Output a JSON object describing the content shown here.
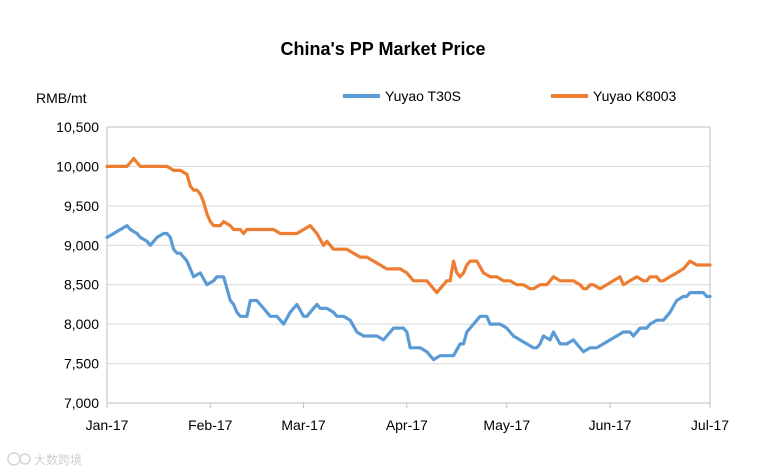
{
  "chart_data": {
    "type": "line",
    "title": "China's PP Market Price",
    "ylabel": "RMB/mt",
    "xlabel": "",
    "ylim": [
      7000,
      10500
    ],
    "xlim": [
      0,
      181
    ],
    "y_ticks": [
      7000,
      7500,
      8000,
      8500,
      9000,
      9500,
      10000,
      10500
    ],
    "y_tick_labels": [
      "7,000",
      "7,500",
      "8,000",
      "8,500",
      "9,000",
      "9,500",
      "10,000",
      "10,500"
    ],
    "x_ticks": [
      {
        "day": 0,
        "label": "Jan-17"
      },
      {
        "day": 31,
        "label": "Feb-17"
      },
      {
        "day": 59,
        "label": "Mar-17"
      },
      {
        "day": 90,
        "label": "Apr-17"
      },
      {
        "day": 120,
        "label": "May-17"
      },
      {
        "day": 151,
        "label": "Jun-17"
      },
      {
        "day": 181,
        "label": "Jul-17"
      }
    ],
    "grid": true,
    "legend_position": "top",
    "series": [
      {
        "name": "Yuyao T30S",
        "color": "#5B9BD5",
        "x": [
          0,
          2,
          4,
          6,
          7,
          9,
          10,
          12,
          13,
          15,
          17,
          18,
          19,
          20,
          21,
          22,
          24,
          26,
          28,
          30,
          32,
          33,
          35,
          37,
          38,
          39,
          40,
          42,
          43,
          45,
          46,
          47,
          49,
          51,
          53,
          55,
          57,
          59,
          60,
          61,
          63,
          64,
          66,
          68,
          69,
          70,
          71,
          73,
          75,
          77,
          79,
          81,
          83,
          84,
          86,
          88,
          89,
          90,
          91,
          93,
          94,
          96,
          98,
          100,
          102,
          104,
          106,
          107,
          108,
          109,
          110,
          111,
          112,
          114,
          115,
          117,
          118,
          120,
          122,
          124,
          126,
          128,
          129,
          130,
          131,
          133,
          134,
          136,
          138,
          140,
          141,
          143,
          145,
          147,
          149,
          151,
          153,
          155,
          157,
          158,
          160,
          161,
          162,
          163,
          165,
          167,
          168,
          169,
          171,
          173,
          174,
          175,
          177,
          179,
          180,
          181
        ],
        "values": [
          9100,
          9150,
          9200,
          9250,
          9200,
          9150,
          9100,
          9050,
          9000,
          9100,
          9150,
          9150,
          9100,
          8950,
          8900,
          8900,
          8800,
          8600,
          8650,
          8500,
          8550,
          8600,
          8600,
          8300,
          8250,
          8150,
          8100,
          8100,
          8300,
          8300,
          8250,
          8200,
          8100,
          8100,
          8000,
          8150,
          8250,
          8100,
          8100,
          8150,
          8250,
          8200,
          8200,
          8150,
          8100,
          8100,
          8100,
          8050,
          7900,
          7850,
          7850,
          7850,
          7800,
          7850,
          7950,
          7950,
          7950,
          7900,
          7700,
          7700,
          7700,
          7650,
          7550,
          7600,
          7600,
          7600,
          7750,
          7750,
          7900,
          7950,
          8000,
          8050,
          8100,
          8100,
          8000,
          8000,
          8000,
          7950,
          7850,
          7800,
          7750,
          7700,
          7700,
          7750,
          7850,
          7800,
          7900,
          7750,
          7750,
          7800,
          7750,
          7650,
          7700,
          7700,
          7750,
          7800,
          7850,
          7900,
          7900,
          7850,
          7950,
          7950,
          7950,
          8000,
          8050,
          8050,
          8100,
          8150,
          8300,
          8350,
          8350,
          8400,
          8400,
          8400,
          8350,
          8350
        ]
      },
      {
        "name": "Yuyao K8003",
        "color": "#ED7D31",
        "x": [
          0,
          5,
          6,
          7,
          8,
          9,
          10,
          11,
          13,
          15,
          18,
          20,
          21,
          22,
          24,
          25,
          26,
          27,
          28,
          29,
          30,
          31,
          32,
          34,
          35,
          37,
          38,
          40,
          41,
          42,
          44,
          46,
          48,
          50,
          52,
          54,
          55,
          57,
          59,
          61,
          63,
          65,
          66,
          67,
          68,
          70,
          72,
          74,
          76,
          78,
          80,
          82,
          84,
          86,
          88,
          90,
          92,
          94,
          96,
          97,
          98,
          99,
          100,
          101,
          102,
          103,
          104,
          105,
          106,
          107,
          108,
          109,
          111,
          113,
          115,
          117,
          119,
          121,
          123,
          125,
          127,
          128,
          130,
          132,
          133,
          134,
          136,
          138,
          140,
          142,
          143,
          144,
          145,
          146,
          148,
          150,
          152,
          154,
          155,
          157,
          159,
          161,
          162,
          163,
          165,
          166,
          167,
          169,
          171,
          173,
          174,
          175,
          177,
          179,
          181
        ],
        "values": [
          10000,
          10000,
          10000,
          10050,
          10100,
          10050,
          10000,
          10000,
          10000,
          10000,
          10000,
          9950,
          9950,
          9950,
          9900,
          9750,
          9700,
          9700,
          9650,
          9550,
          9400,
          9300,
          9250,
          9250,
          9300,
          9250,
          9200,
          9200,
          9150,
          9200,
          9200,
          9200,
          9200,
          9200,
          9150,
          9150,
          9150,
          9150,
          9200,
          9250,
          9150,
          9000,
          9050,
          9000,
          8950,
          8950,
          8950,
          8900,
          8850,
          8850,
          8800,
          8750,
          8700,
          8700,
          8700,
          8650,
          8550,
          8550,
          8550,
          8500,
          8450,
          8400,
          8450,
          8500,
          8550,
          8550,
          8800,
          8650,
          8600,
          8650,
          8750,
          8800,
          8800,
          8650,
          8600,
          8600,
          8550,
          8550,
          8500,
          8500,
          8450,
          8450,
          8500,
          8500,
          8550,
          8600,
          8550,
          8550,
          8550,
          8500,
          8450,
          8450,
          8500,
          8500,
          8450,
          8500,
          8550,
          8600,
          8500,
          8550,
          8600,
          8550,
          8550,
          8600,
          8600,
          8550,
          8550,
          8600,
          8650,
          8700,
          8750,
          8800,
          8750,
          8750,
          8750
        ]
      }
    ]
  },
  "watermark": {
    "icon": "sun-logo-icon",
    "text": "大数跨境"
  }
}
